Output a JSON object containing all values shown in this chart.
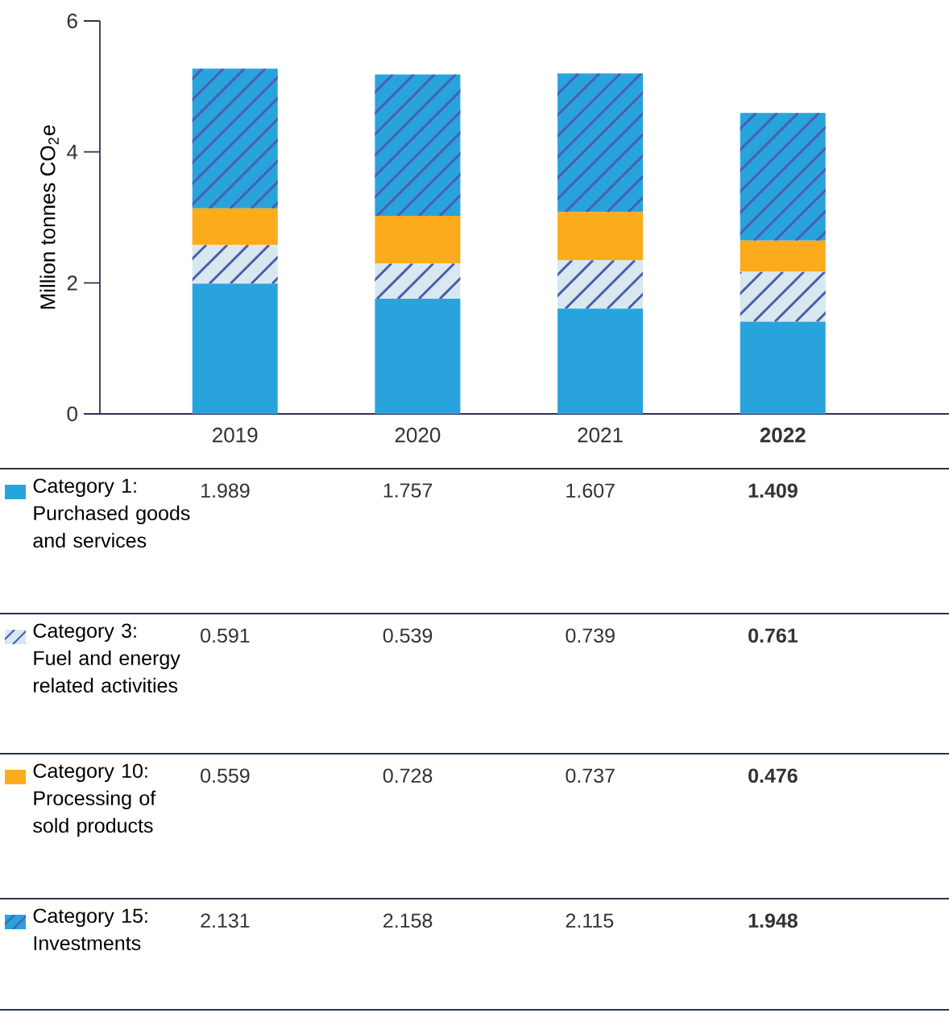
{
  "chart_data": {
    "type": "bar",
    "stacked": true,
    "ylabel": "Million tonnes CO$_{2}$e",
    "categories": [
      "2019",
      "2020",
      "2021",
      "**2022**"
    ],
    "ylim": [
      0,
      6
    ],
    "yticks": [
      0,
      2,
      4,
      6
    ],
    "data_labels": true,
    "legend": "bottom",
    "series": [
      {
        "name": "Category 1: Purchased goods and services",
        "color": "#29a3dc",
        "values": [
          1.989,
          1.757,
          1.607,
          1.409
        ]
      },
      {
        "name": "Category 3: Fuel and energy related activities",
        "color": "#d9e8ef",
        "values": [
          0.591,
          0.539,
          0.739,
          0.761
        ]
      },
      {
        "name": "Category 10: Processing of sold products",
        "color": "#fbab1b",
        "values": [
          0.559,
          0.728,
          0.737,
          0.476
        ]
      },
      {
        "name": "Category 15: Investments",
        "color": "#29a3dc",
        "values": [
          2.131,
          2.158,
          2.115,
          1.948
        ]
      }
    ]
  }
}
